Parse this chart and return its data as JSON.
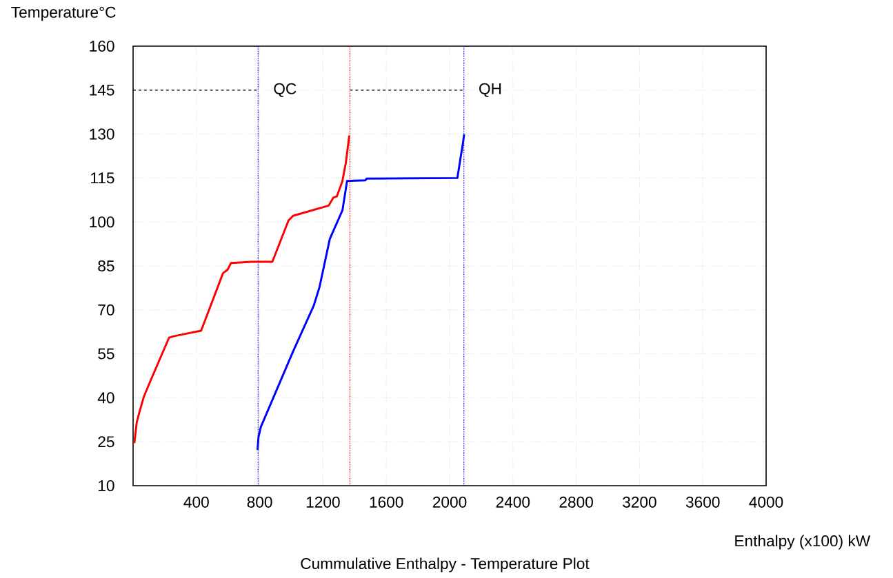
{
  "chart_data": {
    "type": "line",
    "title": "Cummulative Enthalpy - Temperature Plot",
    "xlabel": "Enthalpy (x100) kW",
    "ylabel": "Temperature°C",
    "xlim": [
      0,
      4000
    ],
    "ylim": [
      10,
      160
    ],
    "xticks": [
      400,
      800,
      1200,
      1600,
      2000,
      2400,
      2800,
      3200,
      3600,
      4000
    ],
    "yticks": [
      10,
      25,
      40,
      55,
      70,
      85,
      100,
      115,
      130,
      145,
      160
    ],
    "grid": true,
    "marker": "none",
    "line_style": "solid",
    "series": [
      {
        "color": "#ff0000",
        "x": [
          8,
          23,
          38,
          67,
          103,
          227,
          256,
          430,
          568,
          597,
          619,
          749,
          880,
          982,
          1011,
          1236,
          1265,
          1287,
          1322,
          1344,
          1366
        ],
        "values": [
          24.5,
          31.6,
          34.7,
          40.2,
          44.9,
          60.5,
          61,
          62.9,
          82.5,
          83.7,
          86,
          86.4,
          86.4,
          100.5,
          102.1,
          105.6,
          108.3,
          108.7,
          113.8,
          120.1,
          129.5
        ]
      },
      {
        "color": "#0000ff",
        "x": [
          786,
          793,
          807,
          1011,
          1142,
          1178,
          1243,
          1323,
          1352,
          1468,
          1475,
          2049,
          2085,
          2092
        ],
        "values": [
          22.2,
          26.8,
          30,
          55.8,
          71.5,
          77.8,
          94.2,
          104,
          114,
          114.2,
          114.8,
          115,
          127.2,
          129.9
        ]
      },
      {
        "color": "#000000",
        "line_style": "dashed",
        "x": [
          0,
          790
        ],
        "values": [
          145,
          145
        ]
      },
      {
        "color": "#000000",
        "line_style": "dashed",
        "x": [
          1370,
          2090
        ],
        "values": [
          145,
          145
        ]
      }
    ],
    "ref_lines": [
      {
        "axis": "x",
        "value": 790,
        "color": "#0000ff",
        "line_style": "dotted"
      },
      {
        "axis": "x",
        "value": 1370,
        "color": "#ff0000",
        "line_style": "dotted"
      },
      {
        "axis": "x",
        "value": 2090,
        "color": "#0000ff",
        "line_style": "dotted"
      }
    ],
    "annotations": [
      {
        "text": "QC",
        "x": 960,
        "y": 145
      },
      {
        "text": "QH",
        "x": 2257,
        "y": 145
      }
    ]
  }
}
